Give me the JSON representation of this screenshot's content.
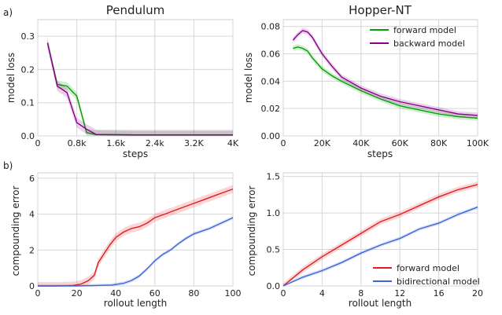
{
  "chart_data": [
    {
      "id": "pendulum",
      "type": "line",
      "panel_label": "a)",
      "title": "Pendulum",
      "xlabel": "steps",
      "ylabel": "model loss",
      "xlim": [
        0,
        4000
      ],
      "ylim": [
        0,
        0.35
      ],
      "xticks": [
        0,
        800,
        1600,
        2400,
        3200,
        4000
      ],
      "xtick_labels": [
        "0",
        "0.8k",
        "1.6k",
        "2.4k",
        "3.2K",
        "4K"
      ],
      "yticks": [
        0,
        0.1,
        0.2,
        0.3
      ],
      "ytick_labels": [
        "0.0",
        "0.1",
        "0.2",
        "0.3"
      ],
      "grid": true,
      "legend": "",
      "series": [
        {
          "color": "#00a000",
          "band": 0.012,
          "x": [
            200,
            400,
            600,
            800,
            1000,
            1200,
            2000,
            4000
          ],
          "y": [
            0.28,
            0.155,
            0.15,
            0.12,
            0.01,
            0.004,
            0.003,
            0.003
          ]
        },
        {
          "color": "#8b008b",
          "band": 0.015,
          "x": [
            200,
            400,
            600,
            800,
            1000,
            1200,
            2000,
            4000
          ],
          "y": [
            0.28,
            0.15,
            0.13,
            0.04,
            0.02,
            0.004,
            0.003,
            0.003
          ]
        }
      ]
    },
    {
      "id": "hopper",
      "type": "line",
      "title": "Hopper-NT",
      "xlabel": "steps",
      "ylabel": "model loss",
      "xlim": [
        0,
        100000
      ],
      "ylim": [
        0,
        0.085
      ],
      "xticks": [
        0,
        20000,
        40000,
        60000,
        80000,
        100000
      ],
      "xtick_labels": [
        "0",
        "20K",
        "40K",
        "60K",
        "80K",
        "100K"
      ],
      "yticks": [
        0,
        0.02,
        0.04,
        0.06,
        0.08
      ],
      "ytick_labels": [
        "0.00",
        "0.02",
        "0.04",
        "0.06",
        "0.08"
      ],
      "grid": true,
      "legend": "top-right",
      "series": [
        {
          "name": "forward model",
          "color": "#00a000",
          "band": 0.002,
          "x": [
            5000,
            7500,
            10000,
            12500,
            15000,
            17500,
            20000,
            25000,
            30000,
            40000,
            50000,
            60000,
            70000,
            80000,
            90000,
            100000
          ],
          "y": [
            0.064,
            0.065,
            0.064,
            0.062,
            0.057,
            0.053,
            0.049,
            0.044,
            0.04,
            0.033,
            0.027,
            0.022,
            0.019,
            0.016,
            0.014,
            0.013
          ]
        },
        {
          "name": "backward model",
          "color": "#8b008b",
          "band": 0.002,
          "x": [
            5000,
            7500,
            10000,
            12500,
            15000,
            17500,
            20000,
            25000,
            30000,
            40000,
            50000,
            60000,
            70000,
            80000,
            90000,
            100000
          ],
          "y": [
            0.07,
            0.074,
            0.077,
            0.076,
            0.072,
            0.066,
            0.06,
            0.051,
            0.043,
            0.035,
            0.029,
            0.025,
            0.022,
            0.019,
            0.016,
            0.015
          ]
        }
      ]
    },
    {
      "id": "compound-left",
      "type": "line",
      "panel_label": "b)",
      "xlabel": "rollout length",
      "ylabel": "compounding error",
      "xlim": [
        0,
        100
      ],
      "ylim": [
        0,
        6.3
      ],
      "xticks": [
        0,
        20,
        40,
        60,
        80,
        100
      ],
      "xtick_labels": [
        "0",
        "20",
        "40",
        "60",
        "80",
        "100"
      ],
      "yticks": [
        0,
        2,
        4,
        6
      ],
      "ytick_labels": [
        "0",
        "2",
        "4",
        "6"
      ],
      "grid": true,
      "legend": "",
      "series": [
        {
          "color": "#e41a1c",
          "band": 0.22,
          "x": [
            0,
            10,
            18,
            22,
            26,
            29,
            31,
            34,
            37,
            40,
            44,
            48,
            52,
            56,
            60,
            65,
            70,
            75,
            80,
            85,
            90,
            95,
            100
          ],
          "y": [
            0,
            0,
            0.02,
            0.1,
            0.3,
            0.6,
            1.3,
            1.8,
            2.3,
            2.7,
            3.0,
            3.2,
            3.3,
            3.5,
            3.8,
            4.0,
            4.2,
            4.4,
            4.6,
            4.8,
            5.0,
            5.2,
            5.4
          ]
        },
        {
          "color": "#3b66d8",
          "band": 0.1,
          "x": [
            0,
            20,
            30,
            38,
            44,
            48,
            52,
            56,
            60,
            64,
            68,
            72,
            76,
            80,
            84,
            88,
            92,
            96,
            100
          ],
          "y": [
            0,
            0,
            0.02,
            0.05,
            0.15,
            0.3,
            0.55,
            0.95,
            1.4,
            1.75,
            2.0,
            2.35,
            2.65,
            2.9,
            3.05,
            3.2,
            3.4,
            3.6,
            3.8
          ]
        }
      ]
    },
    {
      "id": "compound-right",
      "type": "line",
      "xlabel": "rollout length",
      "ylabel": "compounding error",
      "xlim": [
        0,
        20
      ],
      "ylim": [
        0,
        1.55
      ],
      "xticks": [
        0,
        4,
        8,
        12,
        16,
        20
      ],
      "xtick_labels": [
        "0",
        "4",
        "8",
        "12",
        "16",
        "20"
      ],
      "yticks": [
        0,
        0.5,
        1.0,
        1.5
      ],
      "ytick_labels": [
        "0.0",
        "0.5",
        "1.0",
        "1.5"
      ],
      "grid": true,
      "legend": "bottom-right",
      "series": [
        {
          "name": "forward model",
          "color": "#e41a1c",
          "band": 0.04,
          "x": [
            0,
            2,
            4,
            6,
            8,
            10,
            12,
            14,
            16,
            18,
            20
          ],
          "y": [
            0,
            0.22,
            0.4,
            0.56,
            0.72,
            0.88,
            0.98,
            1.1,
            1.22,
            1.32,
            1.39
          ]
        },
        {
          "name": "bidirectional model",
          "color": "#3b66d8",
          "band": 0.025,
          "x": [
            0,
            2,
            4,
            6,
            8,
            10,
            12,
            14,
            16,
            18,
            20
          ],
          "y": [
            0,
            0.12,
            0.21,
            0.32,
            0.45,
            0.56,
            0.65,
            0.78,
            0.86,
            0.98,
            1.08
          ]
        }
      ]
    }
  ]
}
